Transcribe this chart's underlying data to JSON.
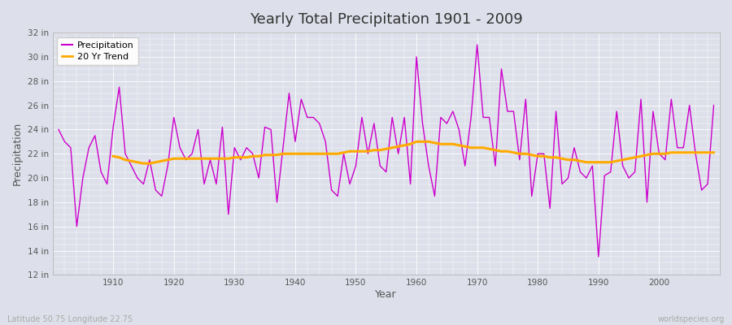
{
  "title": "Yearly Total Precipitation 1901 - 2009",
  "xlabel": "Year",
  "ylabel": "Precipitation",
  "lat_lon_label": "Latitude 50.75 Longitude 22.75",
  "website_label": "worldspecies.org",
  "ylim": [
    12,
    32
  ],
  "yticks": [
    12,
    14,
    16,
    18,
    20,
    22,
    24,
    26,
    28,
    30,
    32
  ],
  "ytick_labels": [
    "12 in",
    "14 in",
    "16 in",
    "18 in",
    "20 in",
    "22 in",
    "24 in",
    "26 in",
    "28 in",
    "30 in",
    "32 in"
  ],
  "xlim_min": 1900,
  "xlim_max": 2010,
  "xticks": [
    1910,
    1920,
    1930,
    1940,
    1950,
    1960,
    1970,
    1980,
    1990,
    2000
  ],
  "precip_color": "#cc00cc",
  "trend_color": "#ffaa00",
  "fig_bg_color": "#dde0ea",
  "plot_bg_color": "#dde0ea",
  "grid_color": "#ffffff",
  "legend_labels": [
    "Precipitation",
    "20 Yr Trend"
  ],
  "years": [
    1901,
    1902,
    1903,
    1904,
    1905,
    1906,
    1907,
    1908,
    1909,
    1910,
    1911,
    1912,
    1913,
    1914,
    1915,
    1916,
    1917,
    1918,
    1919,
    1920,
    1921,
    1922,
    1923,
    1924,
    1925,
    1926,
    1927,
    1928,
    1929,
    1930,
    1931,
    1932,
    1933,
    1934,
    1935,
    1936,
    1937,
    1938,
    1939,
    1940,
    1941,
    1942,
    1943,
    1944,
    1945,
    1946,
    1947,
    1948,
    1949,
    1950,
    1951,
    1952,
    1953,
    1954,
    1955,
    1956,
    1957,
    1958,
    1959,
    1960,
    1961,
    1962,
    1963,
    1964,
    1965,
    1966,
    1967,
    1968,
    1969,
    1970,
    1971,
    1972,
    1973,
    1974,
    1975,
    1976,
    1977,
    1978,
    1979,
    1980,
    1981,
    1982,
    1983,
    1984,
    1985,
    1986,
    1987,
    1988,
    1989,
    1990,
    1991,
    1992,
    1993,
    1994,
    1995,
    1996,
    1997,
    1998,
    1999,
    2000,
    2001,
    2002,
    2003,
    2004,
    2005,
    2006,
    2007,
    2008,
    2009
  ],
  "precip": [
    24.0,
    23.0,
    22.5,
    16.0,
    20.0,
    22.5,
    23.5,
    20.5,
    19.5,
    24.2,
    27.5,
    22.0,
    21.0,
    20.0,
    19.5,
    21.5,
    19.0,
    18.5,
    21.0,
    25.0,
    22.5,
    21.5,
    22.0,
    24.0,
    19.5,
    21.5,
    19.5,
    24.2,
    17.0,
    22.5,
    21.5,
    22.5,
    22.0,
    20.0,
    24.2,
    24.0,
    18.0,
    22.5,
    27.0,
    23.0,
    26.5,
    25.0,
    25.0,
    24.5,
    23.0,
    19.0,
    18.5,
    22.0,
    19.5,
    21.0,
    25.0,
    22.0,
    24.5,
    21.0,
    20.5,
    25.0,
    22.0,
    25.0,
    19.5,
    30.0,
    24.5,
    21.0,
    18.5,
    25.0,
    24.5,
    25.5,
    24.0,
    21.0,
    25.0,
    31.0,
    25.0,
    25.0,
    21.0,
    29.0,
    25.5,
    25.5,
    21.5,
    26.5,
    18.5,
    22.0,
    22.0,
    17.5,
    25.5,
    19.5,
    20.0,
    22.5,
    20.5,
    20.0,
    21.0,
    13.5,
    20.2,
    20.5,
    25.5,
    21.0,
    20.0,
    20.5,
    26.5,
    18.0,
    25.5,
    22.0,
    21.5,
    26.5,
    22.5,
    22.5,
    26.0,
    22.0,
    19.0,
    19.5,
    26.0
  ],
  "trend": [
    null,
    null,
    null,
    null,
    null,
    null,
    null,
    null,
    null,
    21.8,
    21.7,
    21.5,
    21.4,
    21.3,
    21.2,
    21.2,
    21.3,
    21.4,
    21.5,
    21.6,
    21.6,
    21.6,
    21.6,
    21.6,
    21.6,
    21.6,
    21.6,
    21.6,
    21.6,
    21.7,
    21.7,
    21.7,
    21.8,
    21.8,
    21.9,
    21.9,
    21.9,
    22.0,
    22.0,
    22.0,
    22.0,
    22.0,
    22.0,
    22.0,
    22.0,
    22.0,
    22.0,
    22.1,
    22.2,
    22.2,
    22.2,
    22.2,
    22.3,
    22.3,
    22.4,
    22.5,
    22.6,
    22.7,
    22.8,
    23.0,
    23.0,
    23.0,
    22.9,
    22.8,
    22.8,
    22.8,
    22.7,
    22.6,
    22.5,
    22.5,
    22.5,
    22.4,
    22.3,
    22.2,
    22.2,
    22.1,
    22.0,
    22.0,
    21.9,
    21.8,
    21.8,
    21.7,
    21.7,
    21.6,
    21.5,
    21.5,
    21.4,
    21.3,
    21.3,
    21.3,
    21.3,
    21.3,
    21.4,
    21.5,
    21.6,
    21.7,
    21.8,
    21.9,
    22.0,
    22.0,
    22.0,
    22.1,
    22.1,
    22.1,
    22.1,
    22.1,
    22.1,
    22.1,
    22.1
  ]
}
